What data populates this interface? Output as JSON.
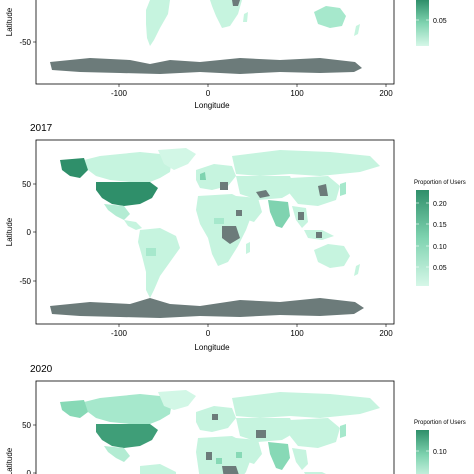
{
  "colors": {
    "low": "#bff3dc",
    "mid": "#87d9b6",
    "high": "#3f9e78",
    "no_data": "#6c7b7a",
    "frame": "#000000"
  },
  "panels": [
    {
      "title": "",
      "y_axis_label": "Latitude",
      "x_axis_label": "Longitude",
      "x_ticks": [
        "-100",
        "0",
        "100",
        "200"
      ],
      "y_ticks": [
        "-50"
      ],
      "legend_title": "",
      "legend_ticks": [
        "0.05"
      ]
    },
    {
      "title": "2017",
      "y_axis_label": "Latitude",
      "x_axis_label": "Longitude",
      "x_ticks": [
        "-100",
        "0",
        "100",
        "200"
      ],
      "y_ticks": [
        "50",
        "0",
        "-50"
      ],
      "legend_title": "Proportion of Users",
      "legend_ticks": [
        "0.20",
        "0.15",
        "0.10",
        "0.05"
      ]
    },
    {
      "title": "2020",
      "y_axis_label": "Latitude",
      "x_axis_label": "",
      "x_ticks": [],
      "y_ticks": [
        "50",
        "0"
      ],
      "legend_title": "Proportion of Users",
      "legend_ticks": [
        "0.10"
      ]
    }
  ]
}
